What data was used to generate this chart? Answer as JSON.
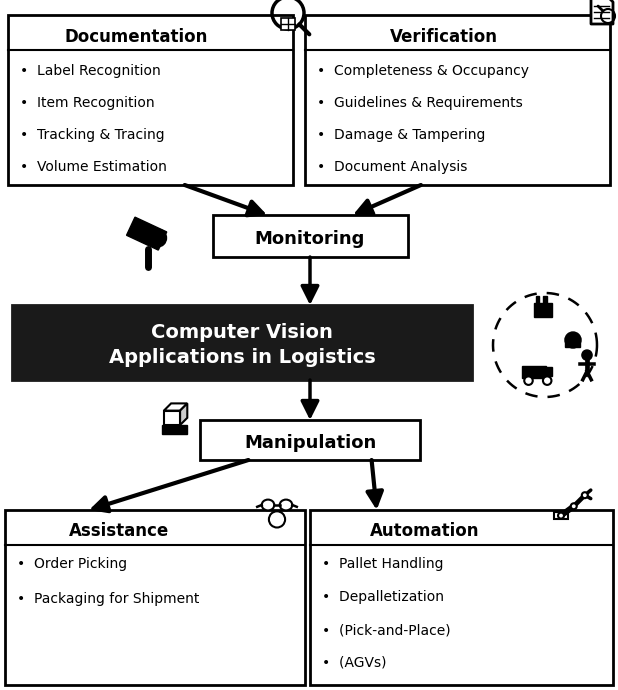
{
  "doc_title": "Documentation",
  "doc_items": [
    "Label Recognition",
    "Item Recognition",
    "Tracking & Tracing",
    "Volume Estimation"
  ],
  "ver_title": "Verification",
  "ver_items": [
    "Completeness & Occupancy",
    "Guidelines & Requirements",
    "Damage & Tampering",
    "Document Analysis"
  ],
  "monitor_label": "Monitoring",
  "central_line1": "Computer Vision",
  "central_line2": "Applications in Logistics",
  "manip_label": "Manipulation",
  "assist_title": "Assistance",
  "assist_items": [
    "Order Picking",
    "Packaging for Shipment"
  ],
  "auto_title": "Automation",
  "auto_items": [
    "Pallet Handling",
    "Depalletization",
    "(Pick-and-Place)",
    "(AGVs)"
  ],
  "bg_color": "#ffffff",
  "central_bg": "#1a1a1a",
  "central_fg": "#ffffff",
  "arrow_color": "#111111",
  "section_title_size": 12,
  "bullet_size": 10,
  "monitor_size": 13,
  "central_size": 14,
  "manip_size": 13
}
